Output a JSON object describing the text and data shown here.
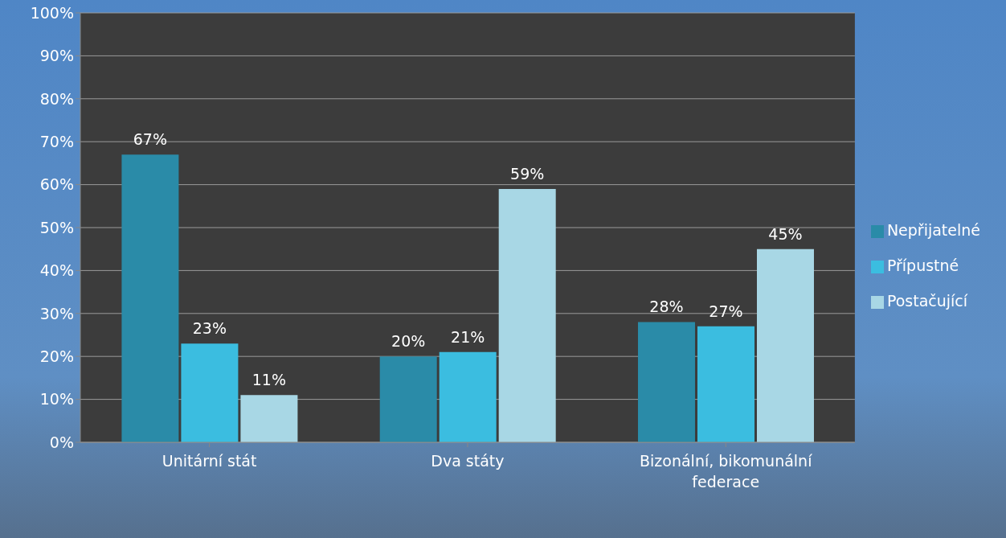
{
  "chart_data": {
    "type": "bar",
    "categories": [
      "Unitární stát",
      "Dva státy",
      "Bizonální, bikomunální federace"
    ],
    "series": [
      {
        "name": "Nepřijatelné",
        "color": "#2a8ba8",
        "values": [
          67,
          20,
          28
        ],
        "value_labels": [
          "67%",
          "20%",
          "28%"
        ]
      },
      {
        "name": "Přípustné",
        "color": "#3bbde0",
        "values": [
          23,
          21,
          27
        ],
        "value_labels": [
          "23%",
          "21%",
          "27%"
        ]
      },
      {
        "name": "Postačující",
        "color": "#a8d7e5",
        "values": [
          11,
          59,
          45
        ],
        "value_labels": [
          "11%",
          "59%",
          "45%"
        ]
      }
    ],
    "ylim": [
      0,
      100
    ],
    "yticks": [
      {
        "value": 0,
        "label": "0%"
      },
      {
        "value": 10,
        "label": "10%"
      },
      {
        "value": 20,
        "label": "20%"
      },
      {
        "value": 30,
        "label": "30%"
      },
      {
        "value": 40,
        "label": "40%"
      },
      {
        "value": 50,
        "label": "50%"
      },
      {
        "value": 60,
        "label": "60%"
      },
      {
        "value": 70,
        "label": "70%"
      },
      {
        "value": 80,
        "label": "80%"
      },
      {
        "value": 90,
        "label": "90%"
      },
      {
        "value": 100,
        "label": "100%"
      }
    ],
    "grid": "y",
    "legend": "right"
  }
}
